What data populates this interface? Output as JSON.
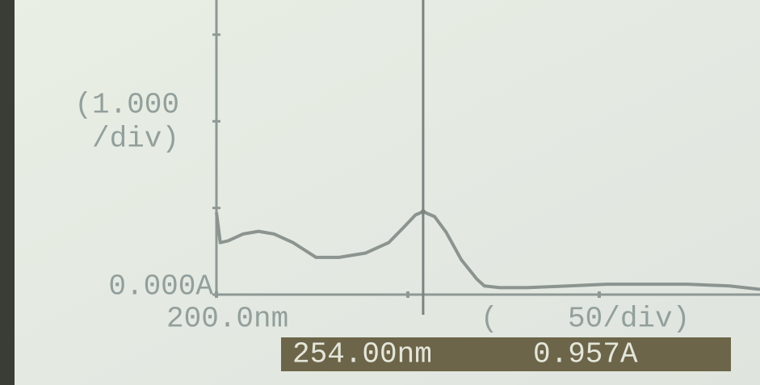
{
  "chart_data": {
    "type": "line",
    "y_scale_label": [
      "(1.000",
      "/div)"
    ],
    "x_scale_label": "(    50/div)",
    "x": [
      200,
      201,
      203,
      207,
      211,
      215,
      220,
      226,
      232,
      239,
      245,
      249,
      252,
      254,
      257,
      260,
      264,
      268,
      270,
      274,
      281,
      292,
      302,
      313,
      323,
      334,
      342
    ],
    "series": [
      {
        "color": "#8c9490",
        "values": [
          0.95,
          0.6,
          0.62,
          0.7,
          0.73,
          0.7,
          0.6,
          0.43,
          0.43,
          0.48,
          0.6,
          0.78,
          0.92,
          0.957,
          0.9,
          0.72,
          0.4,
          0.18,
          0.1,
          0.08,
          0.08,
          0.1,
          0.12,
          0.12,
          0.12,
          0.1,
          0.06
        ]
      }
    ],
    "xlim": [
      200,
      342
    ],
    "ylim": [
      0,
      3.4
    ],
    "xticks": [
      {
        "value": 200,
        "label": "200.0nm"
      },
      {
        "value": 250,
        "label": null
      },
      {
        "value": 300,
        "label": null
      }
    ],
    "yticks": [
      {
        "value": 0,
        "label": "0.000A"
      },
      {
        "value": 1,
        "label": null
      },
      {
        "value": 2,
        "label": null
      },
      {
        "value": 3,
        "label": null
      }
    ],
    "cursor": {
      "x": 254,
      "x_label": "254.00nm",
      "y": 0.957,
      "y_label": "0.957A"
    }
  }
}
